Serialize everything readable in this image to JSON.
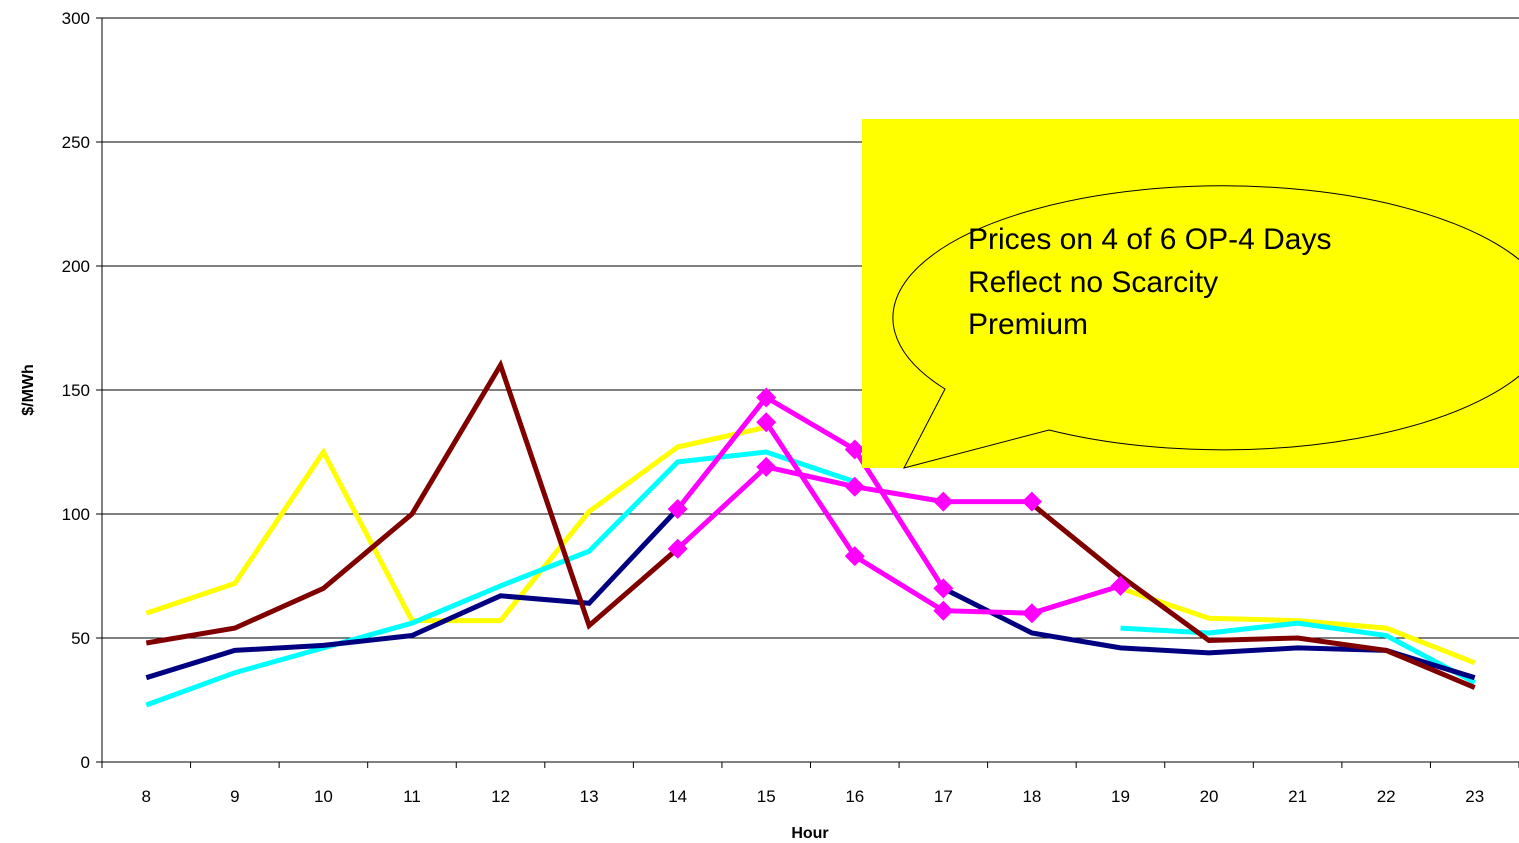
{
  "chart_data": {
    "type": "line",
    "xlabel": "Hour",
    "ylabel": "$/MWh",
    "ylim": [
      0,
      300
    ],
    "yticks": [
      0,
      50,
      100,
      150,
      200,
      250,
      300
    ],
    "categories": [
      "8",
      "9",
      "10",
      "11",
      "12",
      "13",
      "14",
      "15",
      "16",
      "17",
      "18",
      "19",
      "20",
      "21",
      "22",
      "23"
    ],
    "grid": "horizontal",
    "series": [
      {
        "color": "#ffff00",
        "marker": false,
        "values": [
          60,
          72,
          125,
          57,
          57,
          101,
          127,
          135,
          null,
          null,
          null,
          70,
          58,
          57,
          54,
          40
        ]
      },
      {
        "color": "#00ffff",
        "marker": false,
        "values": [
          23,
          36,
          46,
          56,
          71,
          85,
          121,
          125,
          113,
          null,
          null,
          54,
          52,
          56,
          51,
          32
        ]
      },
      {
        "color": "#000080",
        "marker": false,
        "values": [
          34,
          45,
          47,
          51,
          67,
          64,
          102,
          null,
          null,
          70,
          52,
          46,
          44,
          46,
          45,
          34
        ]
      },
      {
        "color": "#800000",
        "marker": false,
        "values": [
          48,
          54,
          70,
          100,
          160,
          55,
          86,
          null,
          null,
          null,
          104,
          75,
          49,
          50,
          45,
          30
        ]
      },
      {
        "color": "#ff00ff",
        "marker": true,
        "values": [
          null,
          null,
          null,
          null,
          null,
          null,
          102,
          147,
          126,
          70,
          null,
          null,
          null,
          null,
          null,
          null
        ]
      },
      {
        "color": "#ff00ff",
        "marker": true,
        "values": [
          null,
          null,
          null,
          null,
          null,
          null,
          null,
          137,
          83,
          61,
          60,
          71,
          null,
          null,
          null,
          null
        ]
      },
      {
        "color": "#ff00ff",
        "marker": true,
        "values": [
          null,
          null,
          null,
          null,
          null,
          null,
          86,
          119,
          111,
          105,
          105,
          null,
          null,
          null,
          null,
          null
        ]
      }
    ],
    "annotation": {
      "box_color": "#ffff00",
      "text_lines": [
        "Prices on 4 of 6 OP-4 Days",
        "Reflect no Scarcity",
        "Premium"
      ]
    }
  }
}
